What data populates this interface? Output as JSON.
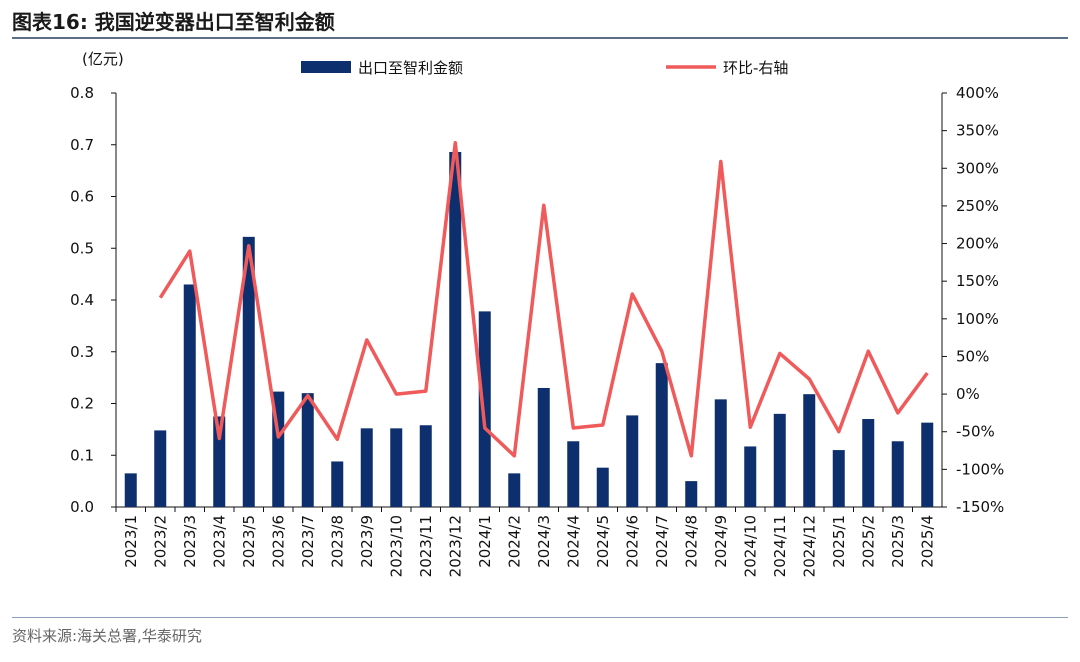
{
  "figure": {
    "title": "图表16:  我国逆变器出口至智利金额",
    "source": "资料来源:海关总署,华泰研究"
  },
  "chart_data": {
    "type": "bar+line",
    "categories": [
      "2023/1",
      "2023/2",
      "2023/3",
      "2023/4",
      "2023/5",
      "2023/6",
      "2023/7",
      "2023/8",
      "2023/9",
      "2023/10",
      "2023/11",
      "2023/12",
      "2024/1",
      "2024/2",
      "2024/3",
      "2024/4",
      "2024/5",
      "2024/6",
      "2024/7",
      "2024/8",
      "2024/9",
      "2024/10",
      "2024/11",
      "2024/12",
      "2025/1",
      "2025/2",
      "2025/3",
      "2025/4"
    ],
    "series": [
      {
        "name": "出口至智利金额",
        "type": "bar",
        "axis": "left",
        "color": "#0d2f6e",
        "values": [
          0.065,
          0.148,
          0.43,
          0.175,
          0.522,
          0.223,
          0.22,
          0.088,
          0.152,
          0.152,
          0.158,
          0.686,
          0.378,
          0.065,
          0.23,
          0.127,
          0.076,
          0.177,
          0.278,
          0.05,
          0.208,
          0.117,
          0.18,
          0.218,
          0.11,
          0.17,
          0.127,
          0.163
        ]
      },
      {
        "name": "环比-右轴",
        "type": "line",
        "axis": "right",
        "color": "#f05a5a",
        "values": [
          null,
          128,
          190,
          -59,
          197,
          -57,
          -2,
          -60,
          72,
          0,
          4,
          334,
          -45,
          -82,
          251,
          -45,
          -41,
          133,
          57,
          -82,
          309,
          -44,
          54,
          20,
          -50,
          57,
          -25,
          28
        ]
      }
    ],
    "y_left": {
      "unit_label": "(亿元)",
      "ylim": [
        0,
        0.8
      ],
      "ticks": [
        "0.0",
        "0.1",
        "0.2",
        "0.3",
        "0.4",
        "0.5",
        "0.6",
        "0.7",
        "0.8"
      ]
    },
    "y_right": {
      "ylim": [
        -150,
        400
      ],
      "ticks": [
        "-150%",
        "-100%",
        "-50%",
        "0%",
        "50%",
        "100%",
        "150%",
        "200%",
        "250%",
        "300%",
        "350%",
        "400%"
      ]
    },
    "legend_position": "top",
    "grid": false
  }
}
